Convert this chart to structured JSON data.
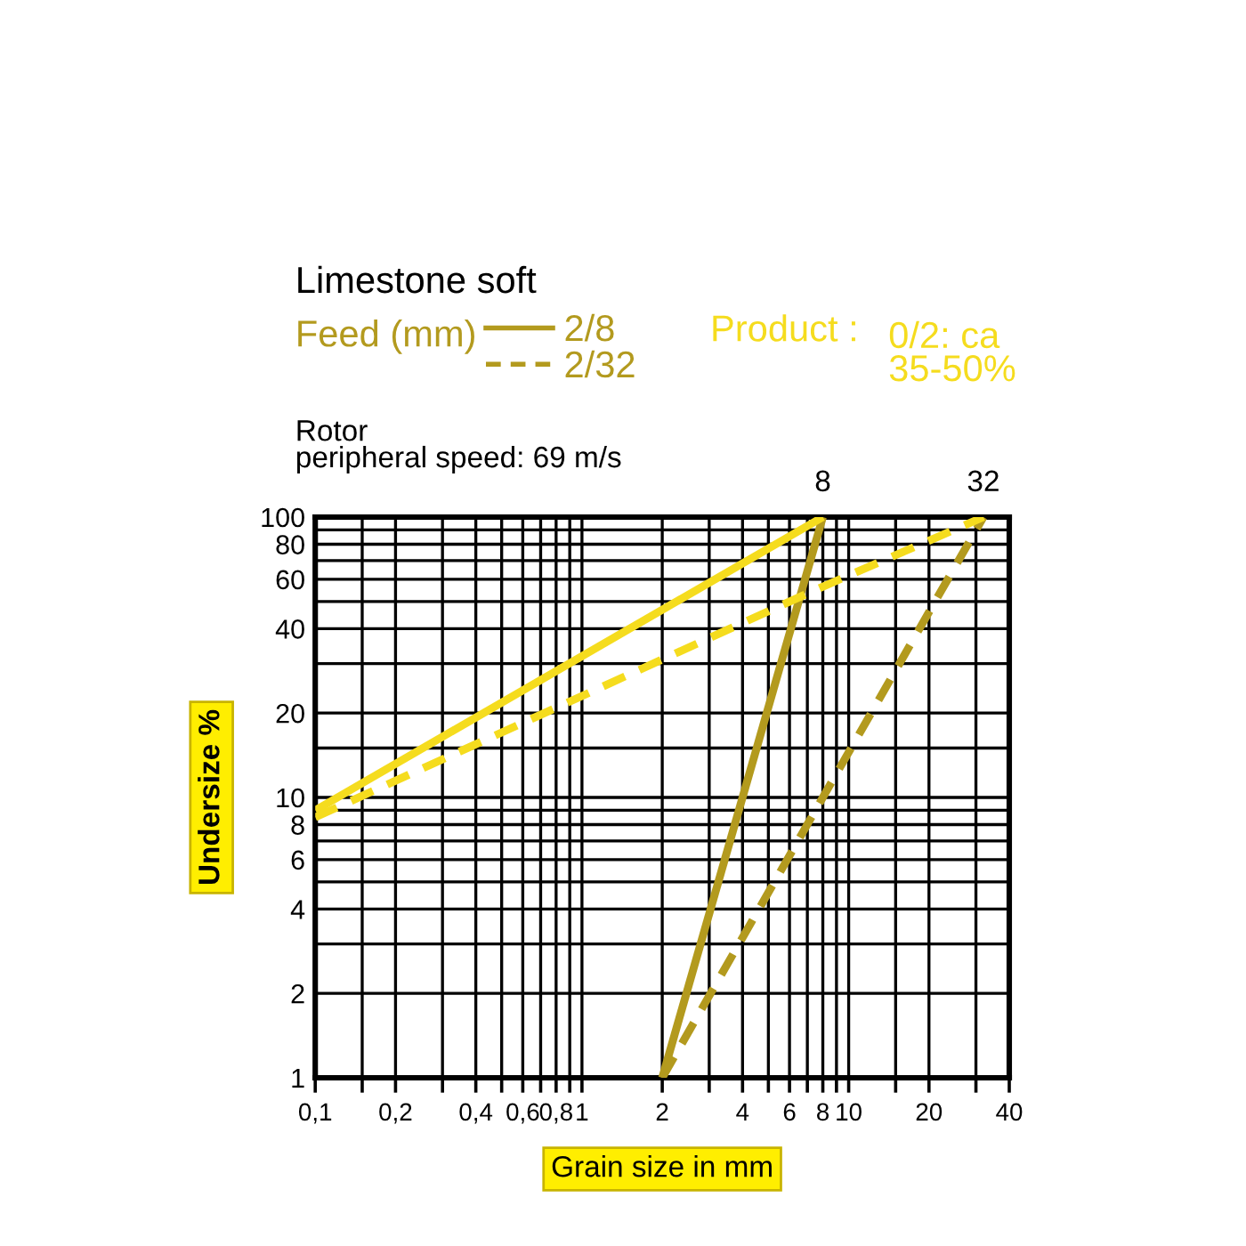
{
  "chart_data": {
    "type": "line",
    "title": "Limestone soft",
    "xlabel": "Grain size in mm",
    "ylabel": "Undersize %",
    "legend_title": "Feed (mm)",
    "series": [
      {
        "name": "2/8",
        "color": "#b39a1e",
        "line_style": "solid",
        "x": [
          2,
          8
        ],
        "values": [
          1,
          100
        ]
      },
      {
        "name": "2/32",
        "color": "#b39a1e",
        "line_style": "dashed",
        "x": [
          2,
          32
        ],
        "values": [
          1,
          100
        ]
      },
      {
        "color": "#f5dc1e",
        "line_style": "solid",
        "x": [
          0.1,
          8
        ],
        "values": [
          9,
          100
        ]
      },
      {
        "color": "#f5dc1e",
        "line_style": "dashed",
        "x": [
          0.1,
          7.5,
          32
        ],
        "values": [
          8.5,
          55,
          100
        ]
      }
    ],
    "annotations": [
      {
        "text": "8",
        "x": 8,
        "y": 100
      },
      {
        "text": "32",
        "x": 32,
        "y": 100
      },
      "Product :",
      "0/2: ca\n35-50%",
      "Rotor\nperipheral speed: 69 m/s"
    ],
    "legend": "top",
    "log": "xy",
    "grid": true,
    "marker": "none",
    "xlim": [
      0.1,
      40
    ],
    "ylim": [
      1,
      100
    ],
    "xticks": [
      {
        "value": 0.1,
        "label": "0,1"
      },
      {
        "value": 0.15,
        "label": null
      },
      {
        "value": 0.2,
        "label": "0,2"
      },
      {
        "value": 0.3,
        "label": null
      },
      {
        "value": 0.4,
        "label": "0,4"
      },
      {
        "value": 0.5,
        "label": null
      },
      {
        "value": 0.6,
        "label": "0,6"
      },
      {
        "value": 0.7,
        "label": null
      },
      {
        "value": 0.8,
        "label": "0,8"
      },
      {
        "value": 0.9,
        "label": null
      },
      1,
      2,
      {
        "value": 3,
        "label": null
      },
      4,
      {
        "value": 5,
        "label": null
      },
      6,
      {
        "value": 7,
        "label": null
      },
      8,
      {
        "value": 9,
        "label": null
      },
      10,
      {
        "value": 15,
        "label": null
      },
      20,
      {
        "value": 30,
        "label": null
      },
      40
    ],
    "yticks": [
      1,
      2,
      {
        "value": 3,
        "label": null
      },
      4,
      {
        "value": 5,
        "label": null
      },
      6,
      {
        "value": 7,
        "label": null
      },
      8,
      {
        "value": 9,
        "label": null
      },
      10,
      {
        "value": 15,
        "label": null
      },
      20,
      {
        "value": 30,
        "label": null
      },
      40,
      {
        "value": 50,
        "label": null
      },
      60,
      {
        "value": 70,
        "label": null
      },
      80,
      {
        "value": 90,
        "label": null
      },
      100
    ]
  }
}
